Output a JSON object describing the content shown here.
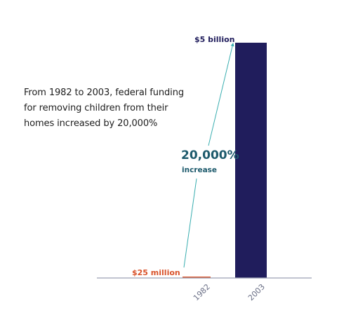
{
  "chart_data": {
    "type": "bar",
    "categories": [
      "1982",
      "2003"
    ],
    "values": [
      0.025,
      5
    ],
    "data_labels": [
      "$25 million",
      "$5 billion"
    ],
    "ylim": [
      0,
      5
    ],
    "grid": false,
    "annotation": {
      "text": "From 1982 to 2003, federal funding for removing children from their homes increased by 20,000%",
      "lines": [
        "From 1982 to 2003, federal funding",
        "for removing children from their",
        "homes increased by 20,000%"
      ],
      "increase_value": "20,000%",
      "increase_label": "increase"
    }
  },
  "colors": {
    "bar_2003": "#201d5c",
    "bar_1982": "#d9532b",
    "label_1982": "#d9532b",
    "label_2003": "#201d5c",
    "arrow": "#3aaeb0",
    "increase_text": "#1d5a6c",
    "axis": "#9aa1b3",
    "tick_text": "#6a6f86"
  }
}
